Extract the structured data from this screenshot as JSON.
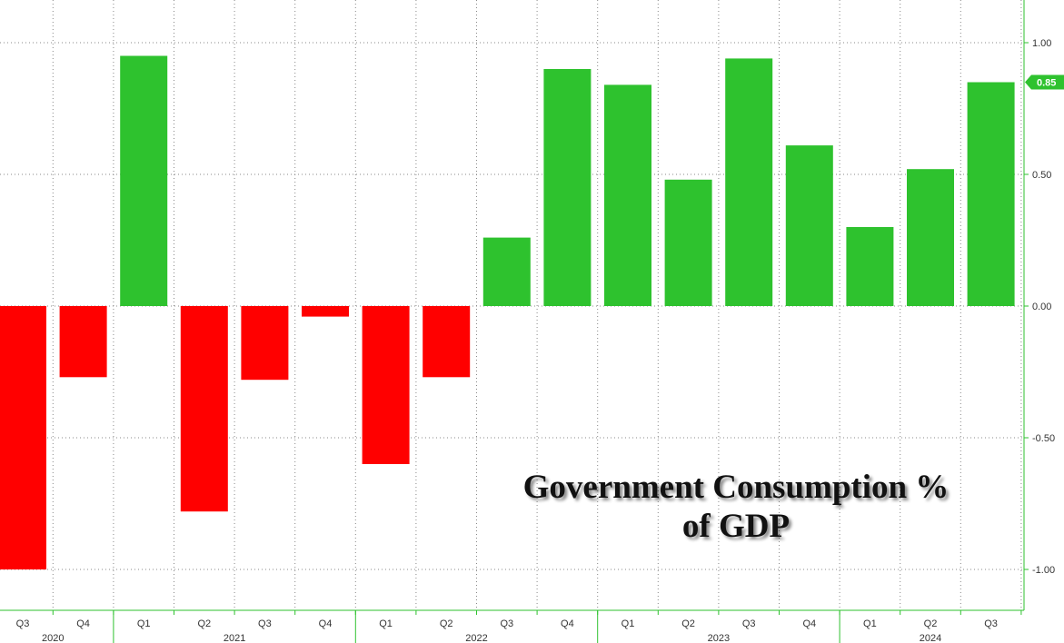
{
  "chart_data": {
    "type": "bar",
    "title_lines": [
      "Government Consumption %",
      "of GDP"
    ],
    "categories": [
      "Q3",
      "Q4",
      "Q1",
      "Q2",
      "Q3",
      "Q4",
      "Q1",
      "Q2",
      "Q3",
      "Q4",
      "Q1",
      "Q2",
      "Q3",
      "Q4",
      "Q1",
      "Q2",
      "Q3"
    ],
    "years": [
      {
        "label": "2020",
        "start": 0,
        "end": 1
      },
      {
        "label": "2021",
        "start": 2,
        "end": 5
      },
      {
        "label": "2022",
        "start": 6,
        "end": 9
      },
      {
        "label": "2023",
        "start": 10,
        "end": 13
      },
      {
        "label": "2024",
        "start": 14,
        "end": 16
      }
    ],
    "values": [
      -1.0,
      -0.27,
      0.95,
      -0.78,
      -0.28,
      -0.04,
      -0.6,
      -0.27,
      0.26,
      0.9,
      0.84,
      0.48,
      0.94,
      0.61,
      0.3,
      0.52,
      0.85
    ],
    "last_value_label": "0.85",
    "ylim": [
      -1.15,
      1.15
    ],
    "yticks": [
      1.0,
      0.5,
      0.0,
      -0.5,
      -1.0
    ],
    "ytick_labels": [
      "1.00",
      "0.50",
      "0.00",
      "-0.50",
      "-1.00"
    ],
    "y_axis_side": "right",
    "grid": true,
    "colors": {
      "positive": "#2ec22e",
      "negative": "#ff0000",
      "axis": "#2ec22e",
      "grid": "#888888"
    }
  }
}
